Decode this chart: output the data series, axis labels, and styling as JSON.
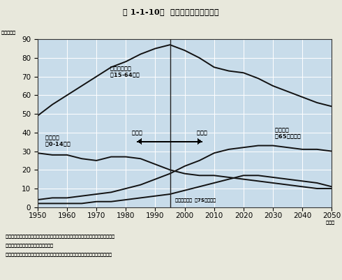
{
  "title": "第 1-1-10図  年齢区分別人口の推移",
  "ylabel": "（百万人）",
  "xlabel": "（年）",
  "xlim": [
    1950,
    2050
  ],
  "ylim": [
    0,
    90
  ],
  "xticks": [
    1950,
    1960,
    1970,
    1980,
    1990,
    2000,
    2010,
    2020,
    2030,
    2040,
    2050
  ],
  "yticks": [
    0,
    10,
    20,
    30,
    40,
    50,
    60,
    70,
    80,
    90
  ],
  "divider_x": 1995,
  "bg_color": "#c8dcea",
  "fig_color": "#e8e8dc",
  "line_color": "#111111",
  "working_age_years": [
    1950,
    1955,
    1960,
    1965,
    1970,
    1975,
    1980,
    1985,
    1990,
    1995,
    2000,
    2005,
    2010,
    2015,
    2020,
    2025,
    2030,
    2035,
    2040,
    2045,
    2050
  ],
  "working_age_vals": [
    49,
    55,
    60,
    65,
    70,
    75,
    78,
    82,
    85,
    87,
    84,
    80,
    75,
    73,
    72,
    69,
    65,
    62,
    59,
    56,
    54
  ],
  "young_years": [
    1950,
    1955,
    1960,
    1965,
    1970,
    1975,
    1980,
    1985,
    1990,
    1995,
    2000,
    2005,
    2010,
    2015,
    2020,
    2025,
    2030,
    2035,
    2040,
    2045,
    2050
  ],
  "young_vals": [
    29,
    28,
    28,
    26,
    25,
    27,
    27,
    26,
    23,
    20,
    18,
    17,
    17,
    16,
    15,
    14,
    13,
    12,
    11,
    10,
    10
  ],
  "elderly_years": [
    1950,
    1955,
    1960,
    1965,
    1970,
    1975,
    1980,
    1985,
    1990,
    1995,
    2000,
    2005,
    2010,
    2015,
    2020,
    2025,
    2030,
    2035,
    2040,
    2045,
    2050
  ],
  "elderly_vals": [
    4,
    5,
    5,
    6,
    7,
    8,
    10,
    12,
    15,
    18,
    22,
    25,
    29,
    31,
    32,
    33,
    33,
    32,
    31,
    31,
    30
  ],
  "late_elderly_years": [
    1950,
    1955,
    1960,
    1965,
    1970,
    1975,
    1980,
    1985,
    1990,
    1995,
    2000,
    2005,
    2010,
    2015,
    2020,
    2025,
    2030,
    2035,
    2040,
    2045,
    2050
  ],
  "late_elderly_vals": [
    2,
    2,
    2,
    2,
    3,
    3,
    4,
    5,
    6,
    7,
    9,
    11,
    13,
    15,
    17,
    17,
    16,
    15,
    14,
    13,
    11
  ],
  "label_working": "生産年齢人口\n（15-64歳）",
  "label_young": "年少人口\n（0-14歳）",
  "label_elderly": "老年人口\n（65歳以上）",
  "label_late": "後期老年人口  （75歳以上）",
  "label_actual": "実績値",
  "label_estimated": "推定値",
  "note1": "注）将来人口の推計は、出生率の違いに応じて高位推計、中位推計、低位推計がある。",
  "note2": "　　ここでは中位推計を示している。",
  "note3": "資料：国立社会保障・人口問題研究所「日本の将来推計人口」（平成９年１月推計）"
}
